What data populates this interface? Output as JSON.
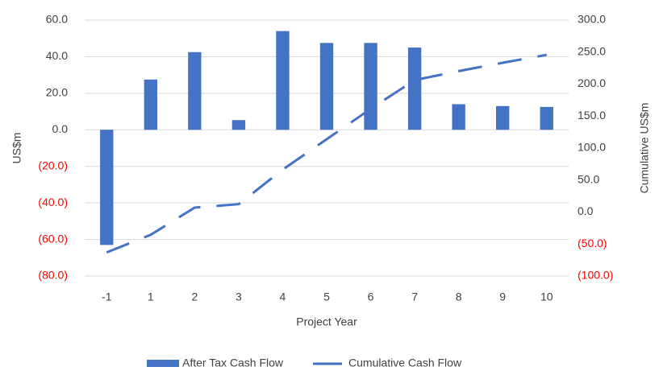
{
  "chart_data": {
    "type": "bar_line",
    "x_label": "Project Year",
    "y_label": "US$m",
    "y2_label": "Cumulative US$m",
    "categories": [
      "-1",
      "1",
      "2",
      "3",
      "4",
      "5",
      "6",
      "7",
      "8",
      "9",
      "10"
    ],
    "series": [
      {
        "name": "After Tax Cash Flow",
        "type": "bar",
        "color": "#4472c4",
        "values": [
          -63,
          27.5,
          42.5,
          5.3,
          54,
          47.5,
          47.5,
          45,
          14,
          13,
          12.5
        ]
      },
      {
        "name": "Cumulative Cash Flow",
        "type": "line",
        "axis": "y2",
        "color": "#4472c4",
        "dashed": true,
        "values": [
          -63,
          -35.5,
          7,
          12.3,
          66.3,
          113.8,
          161.3,
          206.3,
          220.3,
          233.3,
          245.8
        ]
      }
    ],
    "ylim": [
      -80,
      60
    ],
    "yticks": [
      {
        "value": 60,
        "label": "60.0"
      },
      {
        "value": 40,
        "label": "40.0"
      },
      {
        "value": 20,
        "label": "20.0"
      },
      {
        "value": 0,
        "label": "0.0"
      },
      {
        "value": -20,
        "label": "(20.0)"
      },
      {
        "value": -40,
        "label": "(40.0)"
      },
      {
        "value": -60,
        "label": "(60.0)"
      },
      {
        "value": -80,
        "label": "(80.0)"
      }
    ],
    "y2lim": [
      -100,
      300
    ],
    "y2ticks": [
      {
        "value": 300,
        "label": "300.0"
      },
      {
        "value": 250,
        "label": "250.0"
      },
      {
        "value": 200,
        "label": "200.0"
      },
      {
        "value": 150,
        "label": "150.0"
      },
      {
        "value": 100,
        "label": "100.0"
      },
      {
        "value": 50,
        "label": "50.0"
      },
      {
        "value": 0,
        "label": "0.0"
      },
      {
        "value": -50,
        "label": "(50.0)"
      },
      {
        "value": -100,
        "label": "(100.0)"
      }
    ],
    "negative_tick_color": "#ff0000",
    "grid": true,
    "legend": "bottom"
  }
}
